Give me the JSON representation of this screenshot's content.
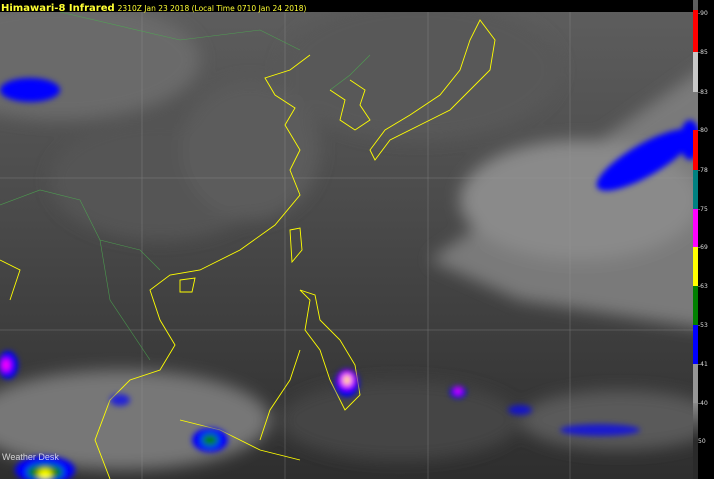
{
  "header": {
    "title": "Himawari-8 Infrared",
    "subtitle": "2310Z Jan 23 2018 (Local Time 0710 Jan 24 2018)"
  },
  "colorbar": {
    "labels": [
      "-90",
      "-85",
      "-83",
      "-80",
      "-78",
      "-75",
      "-69",
      "-63",
      "-53",
      "-41",
      "-40",
      "50"
    ],
    "colors": [
      "#ff0000",
      "#c8c8c8",
      "transparent",
      "#ff0000",
      "#008080",
      "#ff00ff",
      "#ffff00",
      "#008000",
      "#0000ff",
      "#969696",
      "gradient-gray",
      "#2a2a2a"
    ]
  },
  "map": {
    "coastline_color": "#ffff00",
    "border_color": "#4caf50",
    "grid_color": "#9a9a9a",
    "cold_cloud_color": "#0000ff"
  },
  "logo": {
    "text": "Weather Desk"
  }
}
